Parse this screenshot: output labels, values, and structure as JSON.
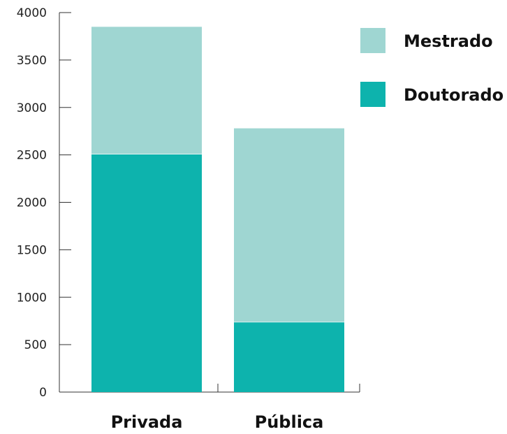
{
  "chart_data": {
    "type": "bar",
    "stacked": true,
    "categories": [
      "Privada",
      "Pública"
    ],
    "series": [
      {
        "name": "Doutorado",
        "values": [
          2510,
          740
        ],
        "color": "#0db3ad"
      },
      {
        "name": "Mestrado",
        "values": [
          1340,
          2040
        ],
        "color": "#9fd6d2"
      }
    ],
    "yticks": [
      0,
      500,
      1000,
      1500,
      2000,
      2500,
      3000,
      3500,
      4000
    ],
    "ylim": [
      0,
      4000
    ],
    "title": "",
    "xlabel": "",
    "ylabel": "",
    "legend_position": "top-right",
    "legend_order": [
      "Mestrado",
      "Doutorado"
    ],
    "grid": false,
    "colors": {
      "axis": "#333333"
    }
  }
}
